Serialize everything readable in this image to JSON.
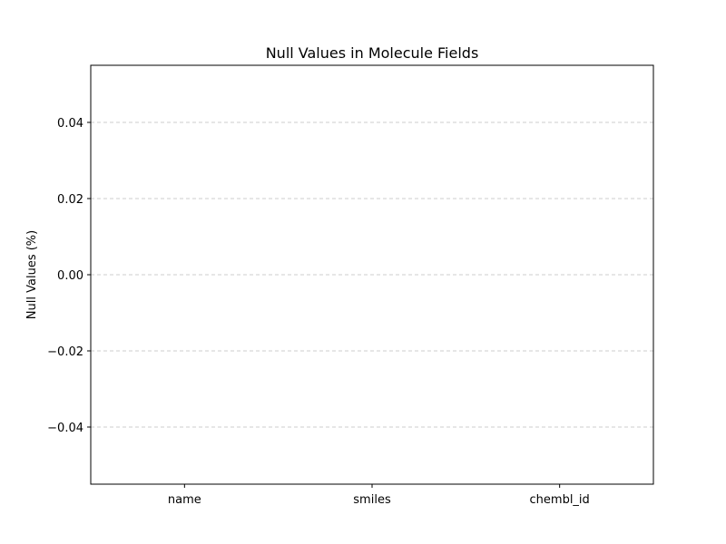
{
  "chart_data": {
    "type": "bar",
    "title": "Null Values in Molecule Fields",
    "xlabel": "",
    "ylabel": "Null Values (%)",
    "categories": [
      "name",
      "smiles",
      "chembl_id"
    ],
    "values": [
      0,
      0,
      0
    ],
    "ylim": [
      -0.055,
      0.055
    ],
    "yticks": [
      0.04,
      0.02,
      0.0,
      -0.02,
      -0.04
    ],
    "ytick_labels": [
      "0.04",
      "0.02",
      "0.00",
      "−0.02",
      "−0.04"
    ],
    "grid": "y-dashed",
    "legend": "none",
    "colors": {
      "bar": "#1f77b4",
      "grid": "#cccccc",
      "axes": "#000000"
    }
  }
}
